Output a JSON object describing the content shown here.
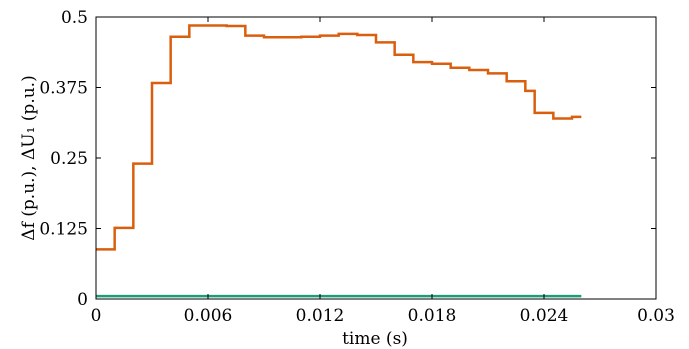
{
  "chart_data": {
    "type": "line",
    "title": "",
    "xlabel": "time (s)",
    "ylabel": "Δf (p.u.), ΔU₁ (p.u.)",
    "xlim": [
      0,
      0.03
    ],
    "ylim": [
      0,
      0.5
    ],
    "xticks": [
      0,
      0.006,
      0.012,
      0.018,
      0.024,
      0.03
    ],
    "xtick_labels": [
      "0",
      "0.006",
      "0.012",
      "0.018",
      "0.024",
      "0.03"
    ],
    "yticks": [
      0,
      0.125,
      0.25,
      0.375,
      0.5
    ],
    "ytick_labels": [
      "0",
      "0.125",
      "0.25",
      "0.375",
      "0.5"
    ],
    "grid": false,
    "legend": "none",
    "series": [
      {
        "color": "#d95f0e",
        "step": true,
        "x": [
          0,
          0.001,
          0.002,
          0.003,
          0.004,
          0.005,
          0.006,
          0.007,
          0.008,
          0.009,
          0.01,
          0.011,
          0.012,
          0.013,
          0.014,
          0.015,
          0.016,
          0.017,
          0.018,
          0.019,
          0.02,
          0.021,
          0.022,
          0.023,
          0.0235,
          0.0245,
          0.0255,
          0.026
        ],
        "y": [
          0.088,
          0.126,
          0.24,
          0.383,
          0.465,
          0.485,
          0.485,
          0.484,
          0.467,
          0.464,
          0.464,
          0.465,
          0.467,
          0.47,
          0.468,
          0.455,
          0.433,
          0.42,
          0.417,
          0.41,
          0.406,
          0.4,
          0.386,
          0.369,
          0.33,
          0.32,
          0.323,
          0.323
        ]
      },
      {
        "color": "#1b9e77",
        "step": false,
        "x": [
          0,
          0.026
        ],
        "y": [
          0.005,
          0.005
        ]
      }
    ]
  }
}
